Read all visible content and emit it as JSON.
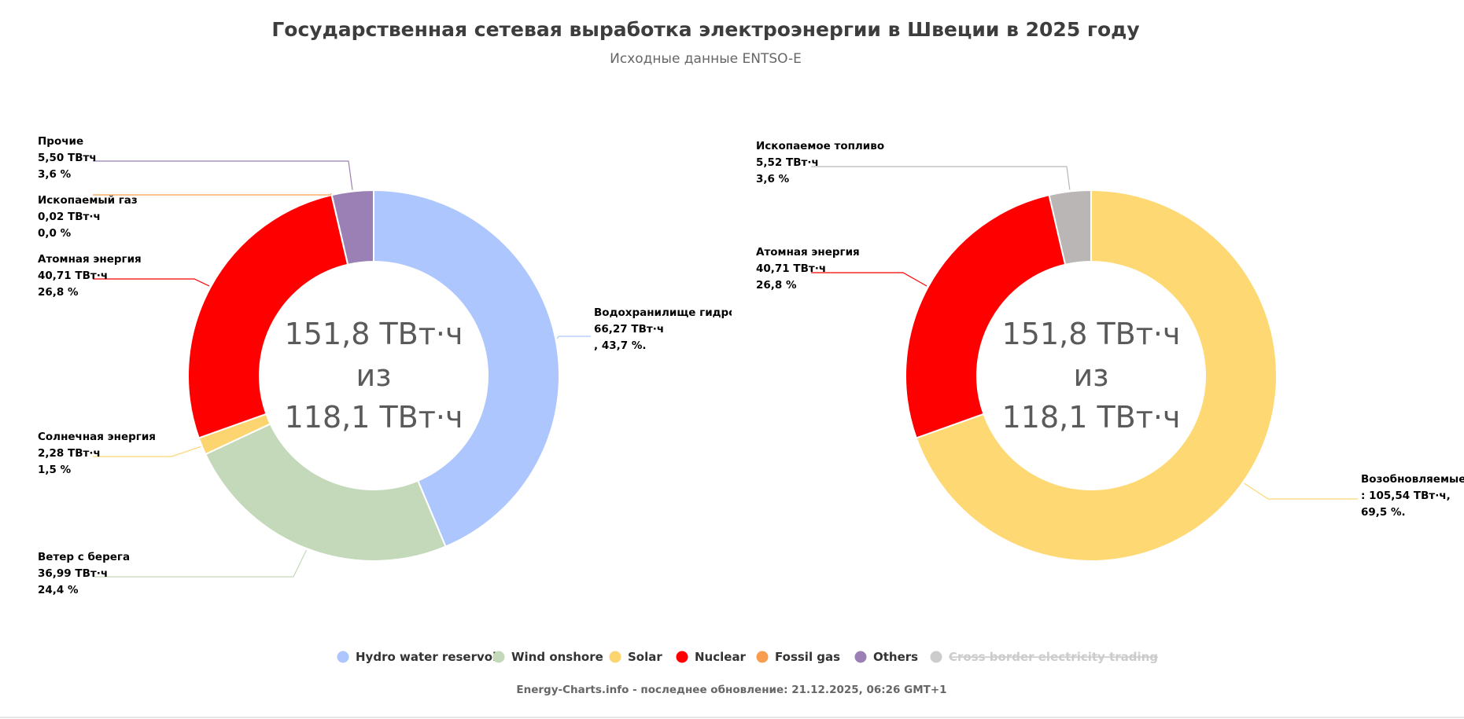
{
  "header": {
    "title": "Государственная сетевая выработка электроэнергии в Швеции в 2025 году",
    "subtitle": "Исходные данные ENTSO-E"
  },
  "chart_data": [
    {
      "type": "pie",
      "variant": "donut",
      "center_lines": [
        "151,8 ТВт·ч",
        "из",
        "118,1 ТВт·ч"
      ],
      "slices": [
        {
          "key": "hydro",
          "name": "Водохранилище гидроэл",
          "value": 66.27,
          "label_value": "66,27 ТВт·ч",
          "label_pct": ", 43,7 %.",
          "color": "#adc6fd"
        },
        {
          "key": "wind",
          "name": "Ветер с берега",
          "value": 36.99,
          "label_value": "36,99 ТВт·ч",
          "label_pct": "24,4 %",
          "color": "#c3d9b9"
        },
        {
          "key": "solar",
          "name": "Солнечная энергия",
          "value": 2.28,
          "label_value": "2,28 ТВт·ч",
          "label_pct": "1,5 %",
          "color": "#fcd571"
        },
        {
          "key": "nuclear",
          "name": "Атомная энергия",
          "value": 40.71,
          "label_value": "40,71 ТВт·ч",
          "label_pct": "26,8 %",
          "color": "#fe0000"
        },
        {
          "key": "gas",
          "name": "Ископаемый газ",
          "value": 0.02,
          "label_value": "0,02 ТВт·ч",
          "label_pct": "0,0 %",
          "color": "#f89d4d"
        },
        {
          "key": "others",
          "name": "Прочие",
          "value": 5.5,
          "label_value": "5,50 ТВтч",
          "label_pct": "3,6 %",
          "color": "#9a80b5"
        }
      ]
    },
    {
      "type": "pie",
      "variant": "donut",
      "center_lines": [
        "151,8 ТВт·ч",
        "из",
        "118,1 ТВт·ч"
      ],
      "slices": [
        {
          "key": "renew",
          "name": "Возобновляемые",
          "value": 105.54,
          "label_value": ": 105,54 ТВт·ч,",
          "label_pct": "69,5 %.",
          "color": "#fdd873"
        },
        {
          "key": "nuclear2",
          "name": "Атомная энергия",
          "value": 40.71,
          "label_value": "40,71 ТВт·ч",
          "label_pct": "26,8 %",
          "color": "#fe0000"
        },
        {
          "key": "fossil",
          "name": "Ископаемое топливо",
          "value": 5.52,
          "label_value": "5,52 ТВт·ч",
          "label_pct": "3,6 %",
          "color": "#b9b6b5"
        }
      ]
    }
  ],
  "legend": {
    "items": [
      {
        "label": "Hydro water reservoir",
        "color": "#adc6fd",
        "hidden": false
      },
      {
        "label": "Wind onshore",
        "color": "#c3d9b9",
        "hidden": false
      },
      {
        "label": "Solar",
        "color": "#fcd571",
        "hidden": false
      },
      {
        "label": "Nuclear",
        "color": "#fe0000",
        "hidden": false
      },
      {
        "label": "Fossil gas",
        "color": "#f89d4d",
        "hidden": false
      },
      {
        "label": "Others",
        "color": "#9a80b5",
        "hidden": false
      },
      {
        "label": "Cross border electricity trading",
        "color": "#cccccc",
        "hidden": true
      }
    ]
  },
  "footer": {
    "credit": "Energy-Charts.info - последнее обновление: 21.12.2025, 06:26 GMT+1"
  }
}
